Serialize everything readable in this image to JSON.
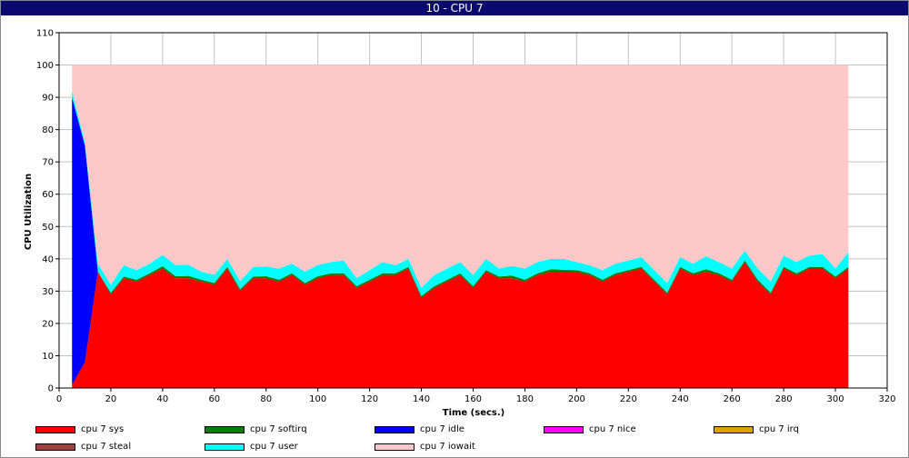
{
  "window": {
    "title": "10 - CPU 7"
  },
  "chart_data": {
    "type": "area",
    "stacked": true,
    "title": "10 - CPU 7",
    "xlabel": "Time (secs.)",
    "ylabel": "CPU Utilization",
    "xlim": [
      0,
      320
    ],
    "ylim": [
      0,
      110
    ],
    "xticks": [
      0,
      20,
      40,
      60,
      80,
      100,
      120,
      140,
      160,
      180,
      200,
      220,
      240,
      260,
      280,
      300,
      320
    ],
    "yticks": [
      0,
      10,
      20,
      30,
      40,
      50,
      60,
      70,
      80,
      90,
      100,
      110
    ],
    "grid": true,
    "legend_position": "bottom",
    "x": [
      5,
      10,
      15,
      20,
      25,
      30,
      35,
      40,
      45,
      50,
      55,
      60,
      65,
      70,
      75,
      80,
      85,
      90,
      95,
      100,
      105,
      110,
      115,
      120,
      125,
      130,
      135,
      140,
      145,
      150,
      155,
      160,
      165,
      170,
      175,
      180,
      185,
      190,
      195,
      200,
      205,
      210,
      215,
      220,
      225,
      230,
      235,
      240,
      245,
      250,
      255,
      260,
      265,
      270,
      275,
      280,
      285,
      290,
      295,
      300,
      305
    ],
    "series": [
      {
        "name": "cpu 7 sys",
        "color": "#ff0000",
        "values": [
          1,
          8,
          36,
          29,
          34,
          33,
          35,
          37,
          34,
          34,
          33,
          32,
          37,
          30,
          34,
          34,
          33,
          35,
          32,
          34,
          35,
          35,
          31,
          33,
          35,
          35,
          37,
          28,
          31,
          33,
          35,
          31,
          36,
          34,
          34,
          33,
          35,
          36,
          36,
          36,
          35,
          33,
          35,
          36,
          37,
          33,
          29,
          37,
          35,
          36,
          35,
          33,
          39,
          33,
          29,
          37,
          35,
          37,
          37,
          34,
          37
        ]
      },
      {
        "name": "cpu 7 softirq",
        "color": "#008000",
        "values": [
          0,
          0,
          0,
          0.5,
          0.5,
          0.5,
          0.5,
          0.7,
          0.6,
          0.7,
          0.5,
          0.5,
          0.5,
          0.6,
          0.5,
          0.6,
          0.5,
          0.5,
          0.5,
          0.6,
          0.5,
          0.5,
          0.5,
          0.5,
          0.5,
          0.5,
          0.5,
          0.5,
          0.5,
          0.5,
          0.5,
          0.5,
          0.5,
          0.5,
          0.8,
          0.5,
          0.5,
          0.8,
          0.6,
          0.5,
          0.5,
          0.5,
          0.5,
          0.5,
          0.5,
          0.5,
          0.5,
          0.5,
          0.5,
          0.8,
          0.5,
          0.5,
          0.5,
          0.5,
          0.5,
          0.5,
          0.5,
          0.5,
          0.5,
          0.5,
          0.5
        ]
      },
      {
        "name": "cpu 7 idle",
        "color": "#0000ff",
        "values": [
          89,
          67,
          0,
          0,
          0,
          0,
          0,
          0,
          0,
          0,
          0,
          0,
          0,
          0,
          0,
          0,
          0,
          0,
          0,
          0,
          0,
          0,
          0,
          0,
          0,
          0,
          0,
          0,
          0,
          0,
          0,
          0,
          0,
          0,
          0,
          0,
          0,
          0,
          0,
          0,
          0,
          0,
          0,
          0,
          0,
          0,
          0,
          0,
          0,
          0,
          0,
          0,
          0,
          0,
          0,
          0,
          0,
          0,
          0,
          0,
          0
        ]
      },
      {
        "name": "cpu 7 nice",
        "color": "#ff00ff",
        "values": [
          0,
          0,
          0,
          0,
          0,
          0,
          0,
          0,
          0,
          0,
          0,
          0,
          0,
          0,
          0,
          0,
          0,
          0,
          0,
          0,
          0,
          0,
          0,
          0,
          0,
          0,
          0,
          0,
          0,
          0,
          0,
          0,
          0,
          0,
          0,
          0,
          0,
          0,
          0,
          0,
          0,
          0,
          0,
          0,
          0,
          0,
          0,
          0,
          0,
          0,
          0,
          0,
          0,
          0,
          0,
          0,
          0,
          0,
          0,
          0,
          0
        ]
      },
      {
        "name": "cpu 7 irq",
        "color": "#e0a000",
        "values": [
          0,
          0,
          0,
          0,
          0,
          0,
          0,
          0,
          0,
          0,
          0,
          0,
          0,
          0,
          0,
          0,
          0,
          0,
          0,
          0,
          0,
          0,
          0,
          0,
          0,
          0,
          0,
          0,
          0,
          0,
          0,
          0,
          0,
          0,
          0,
          0,
          0,
          0,
          0,
          0,
          0,
          0,
          0,
          0,
          0,
          0,
          0,
          0,
          0,
          0,
          0,
          0,
          0,
          0,
          0,
          0,
          0,
          0,
          0,
          0,
          0
        ]
      },
      {
        "name": "cpu 7 steal",
        "color": "#a04040",
        "values": [
          0,
          0,
          0,
          0,
          0,
          0,
          0,
          0,
          0,
          0,
          0,
          0,
          0,
          0,
          0,
          0,
          0,
          0,
          0,
          0,
          0,
          0,
          0,
          0,
          0,
          0,
          0,
          0,
          0,
          0,
          0,
          0,
          0,
          0,
          0,
          0,
          0,
          0,
          0,
          0,
          0,
          0,
          0,
          0,
          0,
          0,
          0,
          0,
          0,
          0,
          0,
          0,
          0,
          0,
          0,
          0,
          0,
          0,
          0,
          0,
          0
        ]
      },
      {
        "name": "cpu 7 user",
        "color": "#00ffff",
        "values": [
          2,
          1,
          2.5,
          2.5,
          3.5,
          3,
          3,
          3.5,
          3.5,
          3.5,
          2.5,
          2.5,
          2.5,
          2.5,
          3,
          3,
          3.5,
          3,
          3.5,
          3.5,
          3.5,
          4,
          2.5,
          3,
          3.5,
          2.5,
          2.5,
          2.5,
          3.5,
          3.5,
          3.5,
          3.5,
          3.5,
          2.5,
          3,
          3.5,
          3.5,
          3.2,
          3.4,
          2.5,
          2.5,
          3,
          3,
          3,
          3,
          3,
          3,
          3,
          3,
          4,
          3.5,
          3.5,
          3,
          3.5,
          3.5,
          3.5,
          3.5,
          3.5,
          4,
          2.5,
          4.5
        ]
      },
      {
        "name": "cpu 7 iowait",
        "color": "#ffc8c8",
        "values": [
          8,
          24,
          61.5,
          68,
          62,
          63.5,
          61.5,
          58.8,
          61.9,
          61.8,
          64,
          65,
          60,
          66.9,
          62.5,
          62.4,
          63,
          61.5,
          64,
          61.9,
          61,
          60.5,
          66,
          63.5,
          61,
          62,
          60,
          69,
          65,
          63,
          61,
          65,
          60,
          63,
          62.2,
          63,
          61,
          60,
          60,
          61,
          62,
          63.5,
          61.5,
          60.5,
          59.5,
          63.5,
          67.5,
          59.5,
          61.5,
          59.2,
          61,
          63,
          57.5,
          63,
          67,
          59,
          61,
          59,
          58.5,
          63,
          58
        ]
      }
    ]
  },
  "legend": [
    {
      "label": "cpu 7 sys",
      "color": "#ff0000"
    },
    {
      "label": "cpu 7 softirq",
      "color": "#008000"
    },
    {
      "label": "cpu 7 idle",
      "color": "#0000ff"
    },
    {
      "label": "cpu 7 nice",
      "color": "#ff00ff"
    },
    {
      "label": "cpu 7 irq",
      "color": "#e0a000"
    },
    {
      "label": "cpu 7 steal",
      "color": "#a04040"
    },
    {
      "label": "cpu 7 user",
      "color": "#00ffff"
    },
    {
      "label": "cpu 7 iowait",
      "color": "#ffc8c8"
    }
  ]
}
